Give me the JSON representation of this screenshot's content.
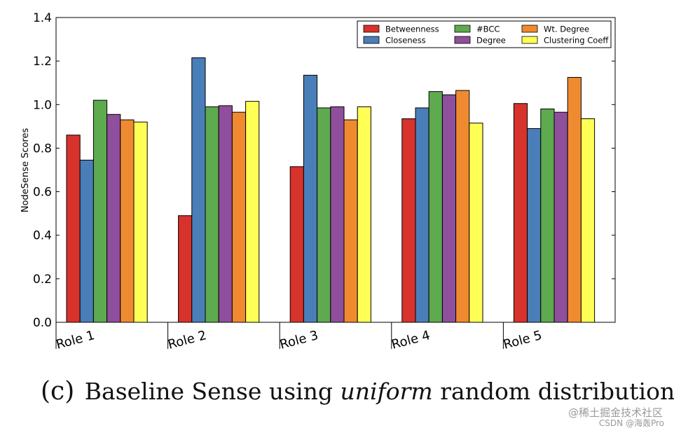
{
  "chart_data": {
    "type": "bar",
    "title": "",
    "xlabel": "",
    "ylabel": "NodeSense Scores",
    "ylim": [
      0,
      1.4
    ],
    "yticks": [
      "0.0",
      "0.2",
      "0.4",
      "0.6",
      "0.8",
      "1.0",
      "1.2",
      "1.4"
    ],
    "categories": [
      "Role 1",
      "Role 2",
      "Role 3",
      "Role 4",
      "Role 5"
    ],
    "legend_position": "top-right",
    "series": [
      {
        "name": "Betweenness",
        "color": "#d7322b",
        "values": [
          0.86,
          0.49,
          0.715,
          0.935,
          1.005
        ]
      },
      {
        "name": "Closeness",
        "color": "#4a7eb8",
        "values": [
          0.745,
          1.215,
          1.135,
          0.985,
          0.89
        ]
      },
      {
        "name": "#BCC",
        "color": "#5eaa4f",
        "values": [
          1.02,
          0.99,
          0.985,
          1.06,
          0.98
        ]
      },
      {
        "name": "Degree",
        "color": "#8f4f9c",
        "values": [
          0.955,
          0.995,
          0.99,
          1.045,
          0.965
        ]
      },
      {
        "name": "Wt. Degree",
        "color": "#f08a31",
        "values": [
          0.93,
          0.965,
          0.93,
          1.065,
          1.125
        ]
      },
      {
        "name": "Clustering Coeff",
        "color": "#ffff55",
        "values": [
          0.92,
          1.015,
          0.99,
          0.915,
          0.935
        ]
      }
    ]
  },
  "caption": {
    "tag": "(c)",
    "text_before": "Baseline Sense using",
    "text_italic": "uniform",
    "text_after": "random distribution"
  },
  "watermark": {
    "line1": "@稀土掘金技术社区",
    "line2": "CSDN @海轰Pro"
  }
}
